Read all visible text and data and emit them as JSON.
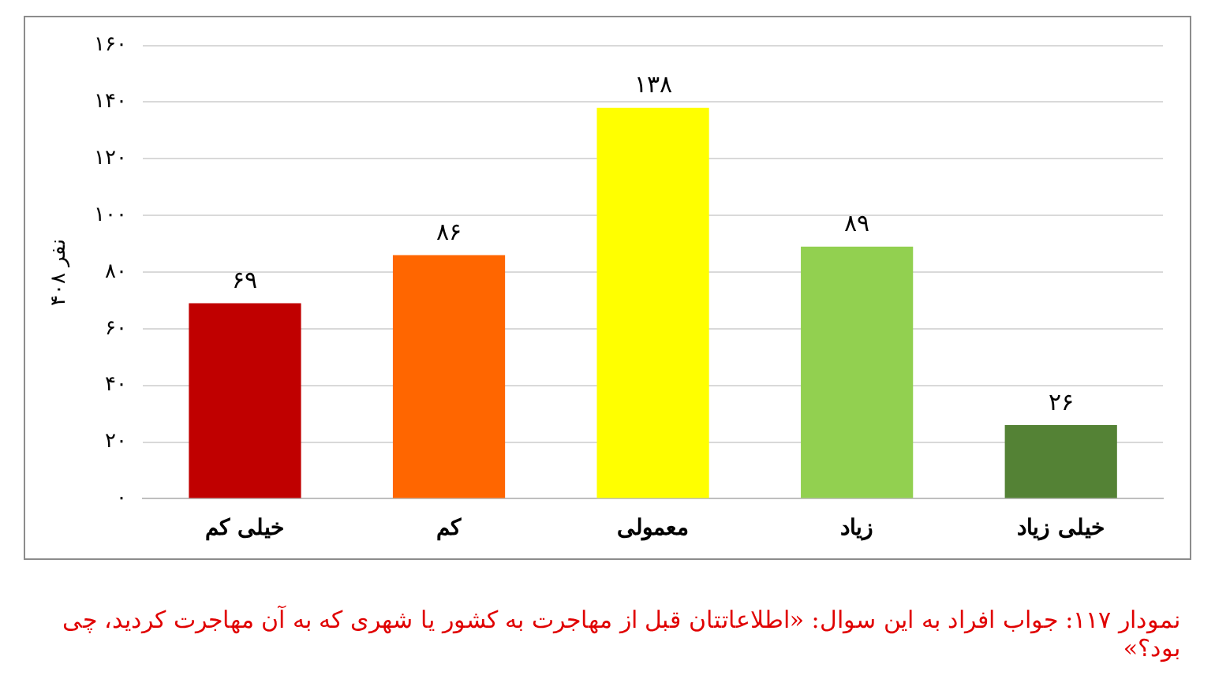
{
  "chart_data": {
    "type": "bar",
    "ylabel": "۴۰۸ نفر",
    "categories": [
      "خیلی کم",
      "کم",
      "معمولی",
      "زیاد",
      "خیلی زیاد"
    ],
    "values": [
      69,
      86,
      138,
      89,
      26
    ],
    "colors": [
      "#c00000",
      "#ff6600",
      "#ffff00",
      "#92d050",
      "#548235"
    ],
    "value_labels": [
      "۶۹",
      "۸۶",
      "۱۳۸",
      "۸۹",
      "۲۶"
    ],
    "ylim": [
      0,
      160
    ],
    "yticks": [
      {
        "value": 0,
        "label": "۰"
      },
      {
        "value": 20,
        "label": "۲۰"
      },
      {
        "value": 40,
        "label": "۴۰"
      },
      {
        "value": 60,
        "label": "۶۰"
      },
      {
        "value": 80,
        "label": "۸۰"
      },
      {
        "value": 100,
        "label": "۱۰۰"
      },
      {
        "value": 120,
        "label": "۱۲۰"
      },
      {
        "value": 140,
        "label": "۱۴۰"
      },
      {
        "value": 160,
        "label": "۱۶۰"
      }
    ],
    "grid": "y",
    "legend": false,
    "annotations": [
      "نمودار ۱۱۷: جواب افراد به این سوال: «اطلاعاتتان قبل از مهاجرت به کشور یا شهری که به آن مهاجرت کردید، چی بود؟»"
    ]
  }
}
